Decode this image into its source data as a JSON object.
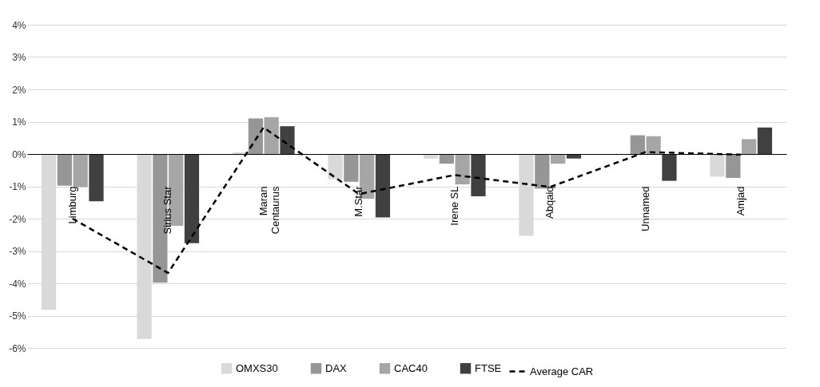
{
  "chart_data": {
    "type": "bar",
    "categories": [
      "Limburg",
      "Sirius Star",
      "Maran Centaurus",
      "M.Star",
      "Irene SL",
      "Abqaiq",
      "Unnamed",
      "Amjad"
    ],
    "series": [
      {
        "name": "OMXS30",
        "color": "#d9d9d9",
        "values": [
          -4.82,
          -5.72,
          0.05,
          -0.78,
          -0.14,
          -2.53,
          null,
          -0.7
        ]
      },
      {
        "name": "DAX",
        "color": "#969696",
        "values": [
          -0.98,
          -3.98,
          1.1,
          -0.86,
          -0.3,
          -1.07,
          0.58,
          -0.74
        ]
      },
      {
        "name": "CAC40",
        "color": "#a6a6a6",
        "values": [
          -1.02,
          -2.22,
          1.14,
          -1.38,
          -0.94,
          -0.3,
          0.55,
          0.46
        ]
      },
      {
        "name": "FTSE",
        "color": "#404040",
        "values": [
          -1.46,
          -2.76,
          0.86,
          -1.96,
          -1.31,
          -0.14,
          -0.83,
          0.82
        ]
      },
      {
        "name": "Average CAR",
        "color": "#000000",
        "type": "line",
        "line_style": "dashed",
        "values": [
          -2.0,
          -3.68,
          0.82,
          -1.24,
          -0.65,
          -1.02,
          0.06,
          -0.02
        ]
      }
    ],
    "ylim": [
      -6,
      4
    ],
    "yticks": [
      {
        "value": -6,
        "label": "-6%"
      },
      {
        "value": -5,
        "label": "-5%"
      },
      {
        "value": -4,
        "label": "-4%"
      },
      {
        "value": -3,
        "label": "-3%"
      },
      {
        "value": -2,
        "label": "-2%"
      },
      {
        "value": -1,
        "label": "-1%"
      },
      {
        "value": 0,
        "label": "0%"
      },
      {
        "value": 1,
        "label": "1%"
      },
      {
        "value": 2,
        "label": "2%"
      },
      {
        "value": 3,
        "label": "3%"
      },
      {
        "value": 4,
        "label": "4%"
      }
    ],
    "grid": "y",
    "legend": "bottom"
  }
}
